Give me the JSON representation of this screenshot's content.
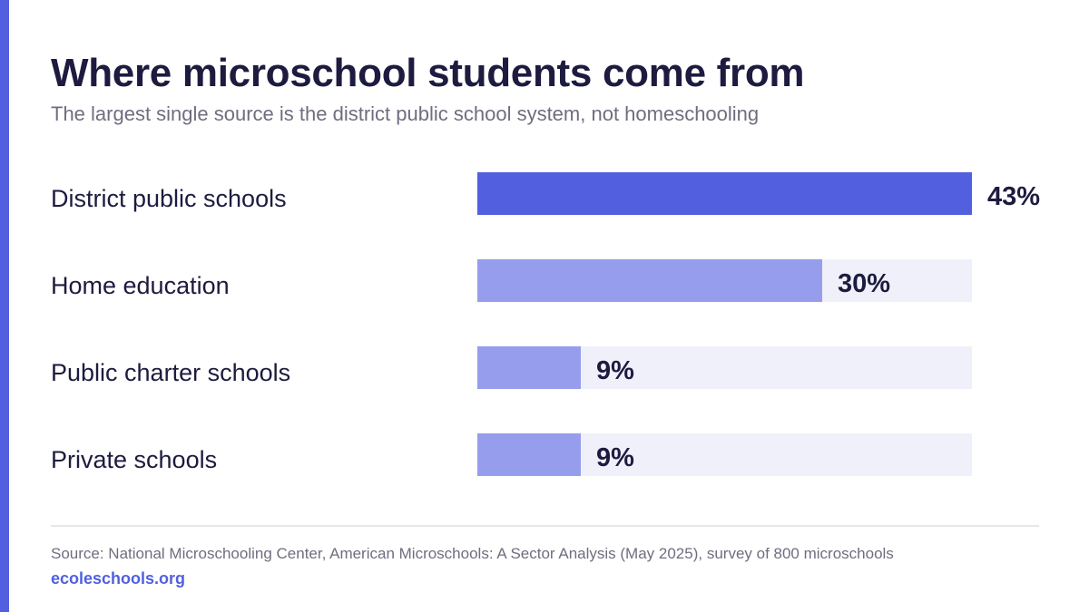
{
  "colors": {
    "accent": "#5260e0",
    "bar_secondary": "#979ded",
    "track": "#f0f0fa",
    "title": "#1d1b3f",
    "muted": "#6e6e80"
  },
  "chart_data": {
    "type": "bar",
    "orientation": "horizontal",
    "title": "Where microschool students come from",
    "subtitle": "The largest single source is the district public school system, not homeschooling",
    "categories": [
      "District public schools",
      "Home education",
      "Public charter schools",
      "Private schools"
    ],
    "values": [
      43,
      30,
      9,
      9
    ],
    "value_labels": [
      "43%",
      "30%",
      "9%",
      "9%"
    ],
    "unit": "%",
    "xlim": [
      0,
      43
    ],
    "grid": false,
    "legend": "none"
  },
  "footer": {
    "source": "Source: National Microschooling Center, American Microschools: A Sector Analysis (May 2025), survey of 800 microschools",
    "site": "ecoleschools.org"
  }
}
